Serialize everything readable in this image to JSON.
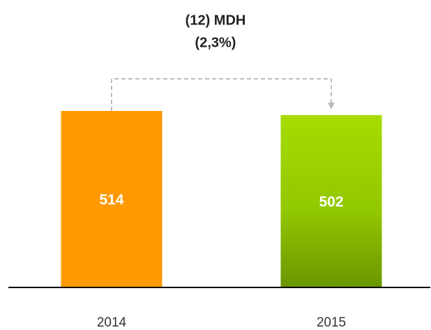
{
  "chart_data": {
    "type": "bar",
    "annotations": [
      "(12) MDH",
      "(2,3%)"
    ],
    "categories": [
      "2014",
      "2015"
    ],
    "values": [
      514,
      502
    ],
    "colors": [
      "#ff9900",
      "#a2d900"
    ]
  }
}
